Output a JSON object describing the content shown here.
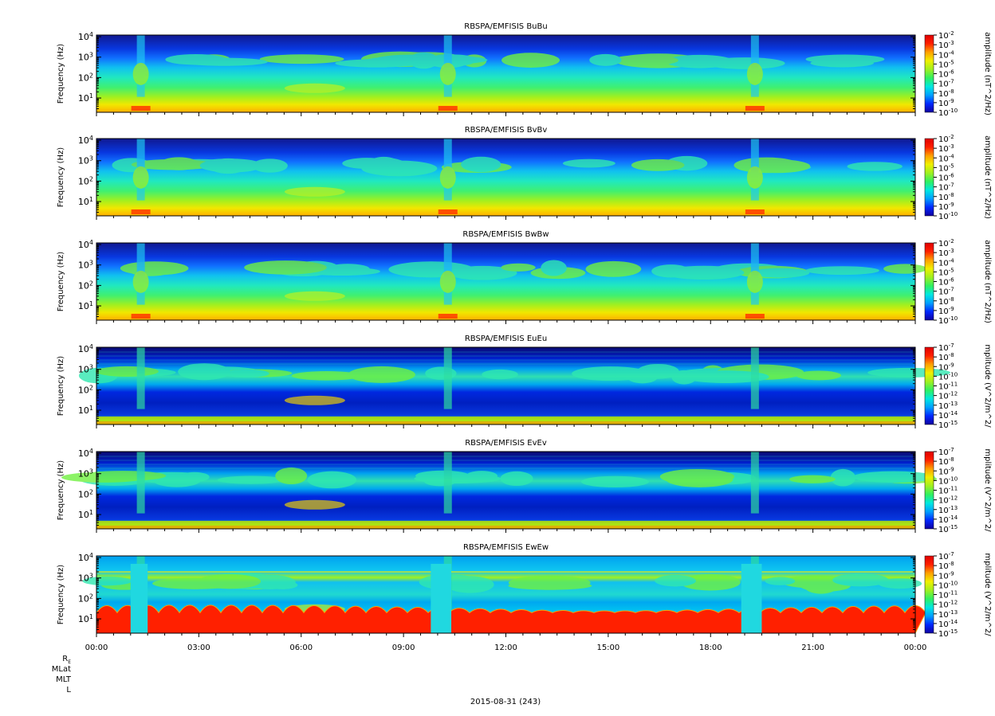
{
  "chart_data": {
    "type": "heatmap",
    "colorscale": [
      "#1000a0",
      "#0028ff",
      "#00a0ff",
      "#00e8e0",
      "#30f060",
      "#a0f020",
      "#f0f000",
      "#ffa000",
      "#ff2000",
      "#e00000"
    ],
    "x_ticks": [
      "00:00",
      "03:00",
      "06:00",
      "09:00",
      "12:00",
      "15:00",
      "18:00",
      "21:00",
      "00:00"
    ],
    "y_ticks": [
      {
        "base": "10",
        "exp": "1"
      },
      {
        "base": "10",
        "exp": "2"
      },
      {
        "base": "10",
        "exp": "3"
      },
      {
        "base": "10",
        "exp": "4"
      }
    ],
    "ylabel": "Frequency (Hz)",
    "ylim_hz": [
      2,
      12000
    ],
    "xlim_hours": [
      0,
      24
    ],
    "orbit_labels": [
      "R",
      "E",
      "MLat",
      "MLT",
      "L"
    ],
    "date_label": "2015-08-31 (243)",
    "panels": [
      {
        "title": "RBSPA/EMFISIS  BuBu",
        "kind": "B",
        "zlabel": "amplitude (nT^2/Hz)",
        "z_ticks": [
          "-2",
          "-3",
          "-4",
          "-5",
          "-6",
          "-7",
          "-8",
          "-9",
          "-10"
        ]
      },
      {
        "title": "RBSPA/EMFISIS  BvBv",
        "kind": "B",
        "zlabel": "amplitude (nT^2/Hz)",
        "z_ticks": [
          "-2",
          "-3",
          "-4",
          "-5",
          "-6",
          "-7",
          "-8",
          "-9",
          "-10"
        ]
      },
      {
        "title": "RBSPA/EMFISIS  BwBw",
        "kind": "B",
        "zlabel": "amplitude (nT^2/Hz)",
        "z_ticks": [
          "-2",
          "-3",
          "-4",
          "-5",
          "-6",
          "-7",
          "-8",
          "-9",
          "-10"
        ]
      },
      {
        "title": "RBSPA/EMFISIS  EuEu",
        "kind": "E",
        "zlabel": "mplitude (V^2/m^2/",
        "z_ticks": [
          "-7",
          "-8",
          "-9",
          "-10",
          "-11",
          "-12",
          "-13",
          "-14",
          "-15"
        ]
      },
      {
        "title": "RBSPA/EMFISIS  EvEv",
        "kind": "E",
        "zlabel": "mplitude (V^2/m^2/",
        "z_ticks": [
          "-7",
          "-8",
          "-9",
          "-10",
          "-11",
          "-12",
          "-13",
          "-14",
          "-15"
        ]
      },
      {
        "title": "RBSPA/EMFISIS  EwEw",
        "kind": "Ew",
        "zlabel": "mplitude (V^2/m^2/",
        "z_ticks": [
          "-7",
          "-8",
          "-9",
          "-10",
          "-11",
          "-12",
          "-13",
          "-14",
          "-15"
        ]
      }
    ]
  }
}
